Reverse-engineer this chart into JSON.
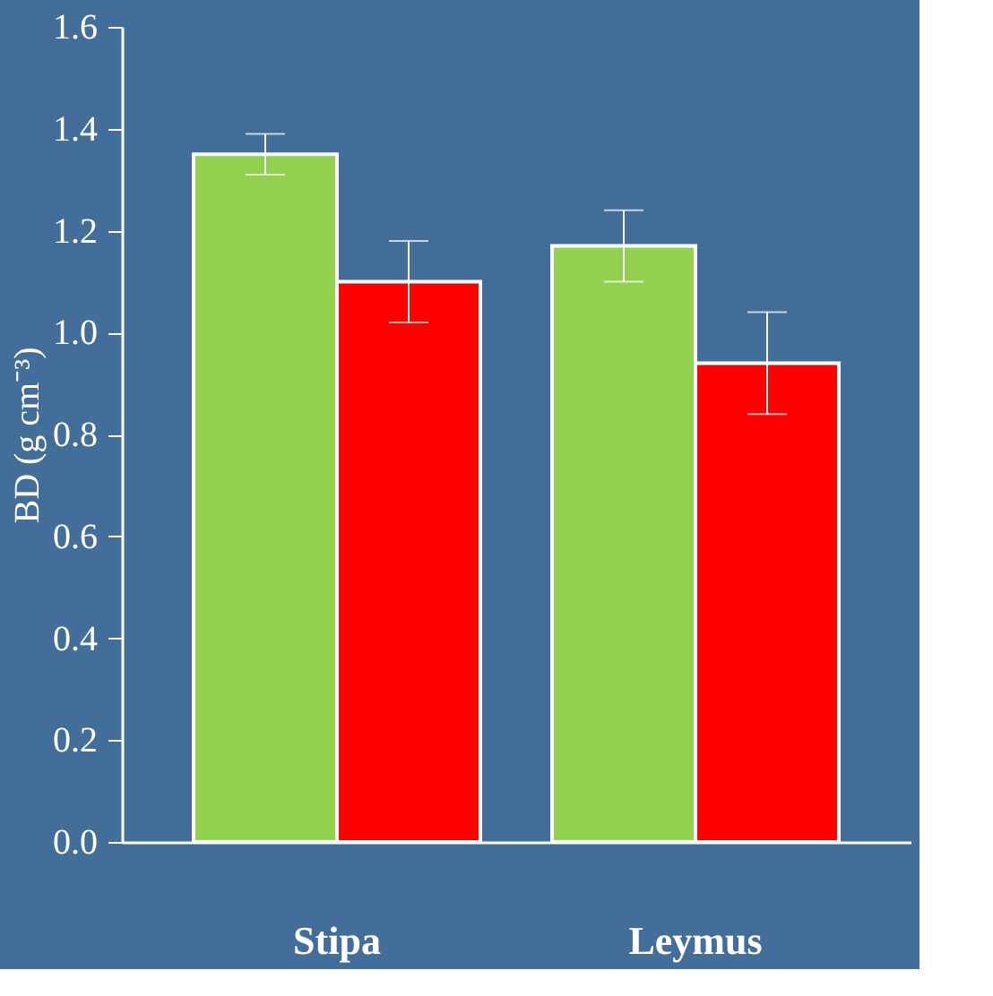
{
  "chart_data": {
    "type": "bar",
    "ylabel": "BD (g cm⁻³)",
    "categories": [
      "Stipa",
      "Leymus"
    ],
    "series": [
      {
        "color": "#92d050",
        "values": [
          1.35,
          1.17
        ],
        "errors": [
          0.04,
          0.07
        ]
      },
      {
        "color": "#ff0000",
        "values": [
          1.1,
          0.94
        ],
        "errors": [
          0.08,
          0.1
        ]
      }
    ],
    "ylim": [
      0,
      1.6
    ],
    "yticks": [
      {
        "value": 0,
        "label": "0.0"
      },
      {
        "value": 0.2,
        "label": "0.2"
      },
      {
        "value": 0.4,
        "label": "0.4"
      },
      {
        "value": 0.6,
        "label": "0.6"
      },
      {
        "value": 0.8,
        "label": "0.8"
      },
      {
        "value": 1.0,
        "label": "1.0"
      },
      {
        "value": 1.2,
        "label": "1.2"
      },
      {
        "value": 1.4,
        "label": "1.4"
      },
      {
        "value": 1.6,
        "label": "1.6"
      }
    ],
    "grid": false,
    "legend": false
  }
}
